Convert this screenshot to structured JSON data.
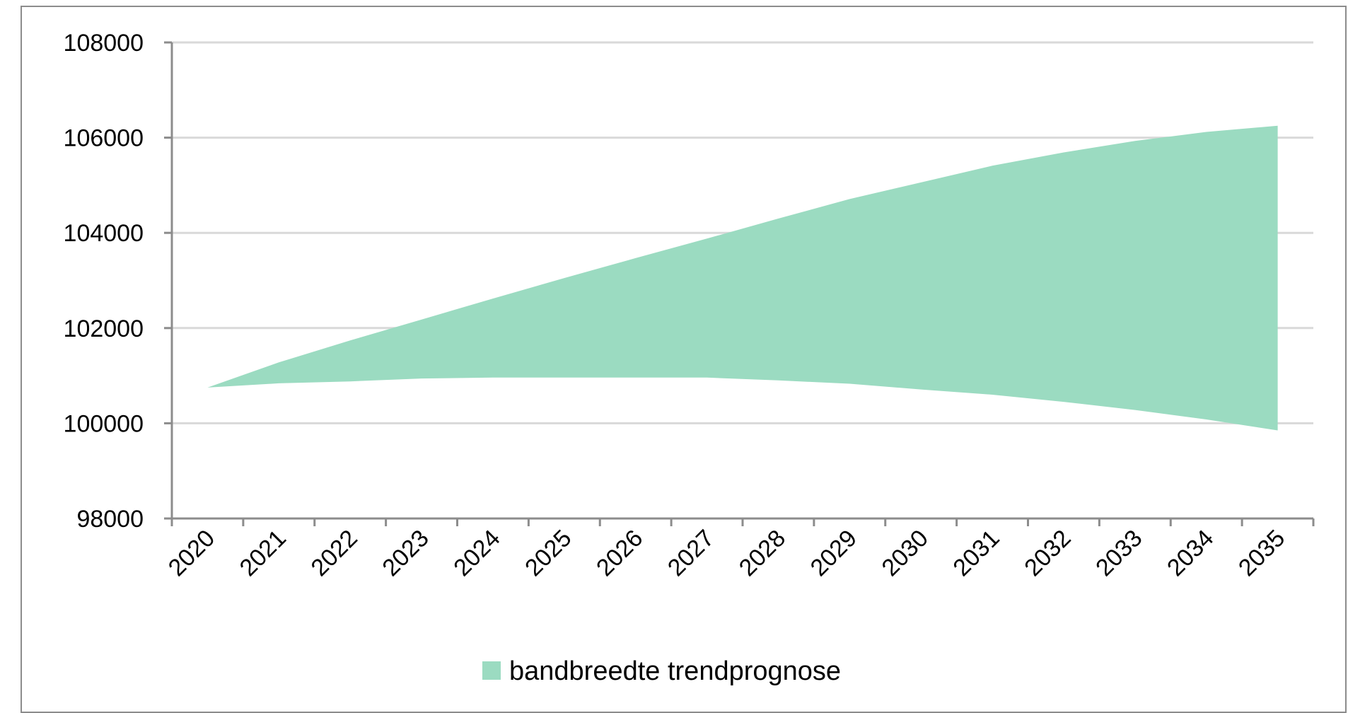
{
  "chart_data": {
    "type": "area",
    "title": "",
    "xlabel": "",
    "ylabel": "",
    "x": [
      "2020",
      "2021",
      "2022",
      "2023",
      "2024",
      "2025",
      "2026",
      "2027",
      "2028",
      "2029",
      "2030",
      "2031",
      "2032",
      "2033",
      "2034",
      "2035"
    ],
    "ylim": [
      98000,
      108000
    ],
    "yticks": [
      "98000",
      "100000",
      "102000",
      "104000",
      "106000",
      "108000"
    ],
    "grid": true,
    "legend_position": "bottom",
    "series": [
      {
        "name": "bandbreedte trendprognose",
        "color": "#9bdbc1",
        "lower": [
          100750,
          100840,
          100880,
          100940,
          100960,
          100960,
          100960,
          100960,
          100900,
          100830,
          100710,
          100600,
          100450,
          100280,
          100080,
          99850
        ],
        "upper": [
          100750,
          101280,
          101740,
          102180,
          102620,
          103050,
          103470,
          103880,
          104300,
          104710,
          105060,
          105410,
          105690,
          105930,
          106120,
          106250
        ]
      }
    ]
  }
}
